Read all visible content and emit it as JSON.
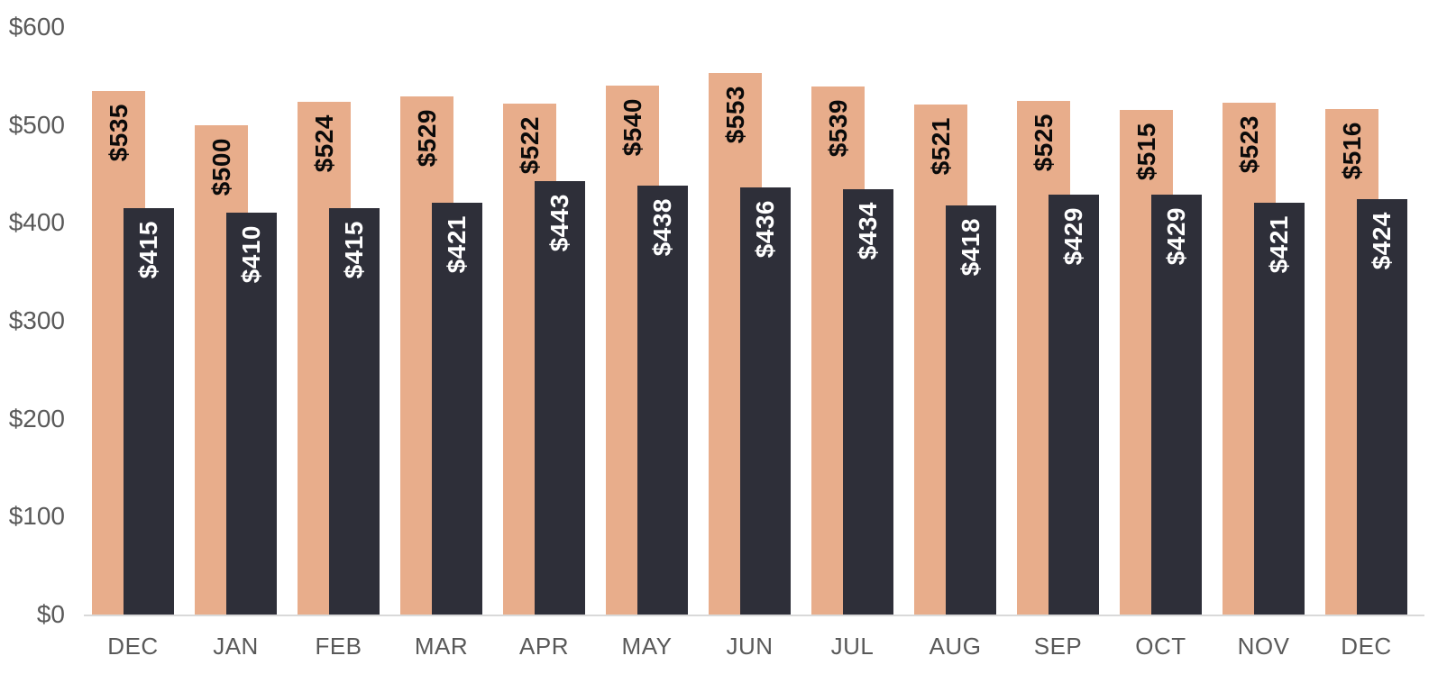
{
  "chart_data": {
    "type": "bar",
    "categories": [
      "DEC",
      "JAN",
      "FEB",
      "MAR",
      "APR",
      "MAY",
      "JUN",
      "JUL",
      "AUG",
      "SEP",
      "OCT",
      "NOV",
      "DEC"
    ],
    "series": [
      {
        "id": "series1",
        "color": "#E8AD8B",
        "label_color": "#0A0A0A",
        "values": [
          535,
          500,
          524,
          529,
          522,
          540,
          553,
          539,
          521,
          525,
          515,
          523,
          516
        ],
        "labels": [
          "$535",
          "$500",
          "$524",
          "$529",
          "$522",
          "$540",
          "$553",
          "$539",
          "$521",
          "$525",
          "$515",
          "$523",
          "$516"
        ]
      },
      {
        "id": "series2",
        "color": "#2E2F39",
        "label_color": "#FFFFFF",
        "values": [
          415,
          410,
          415,
          421,
          443,
          438,
          436,
          434,
          418,
          429,
          429,
          421,
          424
        ],
        "labels": [
          "$415",
          "$410",
          "$415",
          "$421",
          "$443",
          "$438",
          "$436",
          "$434",
          "$418",
          "$429",
          "$429",
          "$421",
          "$424"
        ]
      }
    ],
    "value_prefix": "$",
    "ylim": [
      0,
      600
    ],
    "ytick_step": 100,
    "ytick_values": [
      0,
      100,
      200,
      300,
      400,
      500,
      600
    ],
    "ytick_labels": [
      "$0",
      "$100",
      "$200",
      "$300",
      "$400",
      "$500",
      "$600"
    ],
    "grid": false,
    "legend": "none",
    "label_rotation": "vertical-bottom-to-top",
    "axis_text_color": "#595959",
    "axis_line_color": "#D9D9D9",
    "background_color": "#FFFFFF"
  }
}
